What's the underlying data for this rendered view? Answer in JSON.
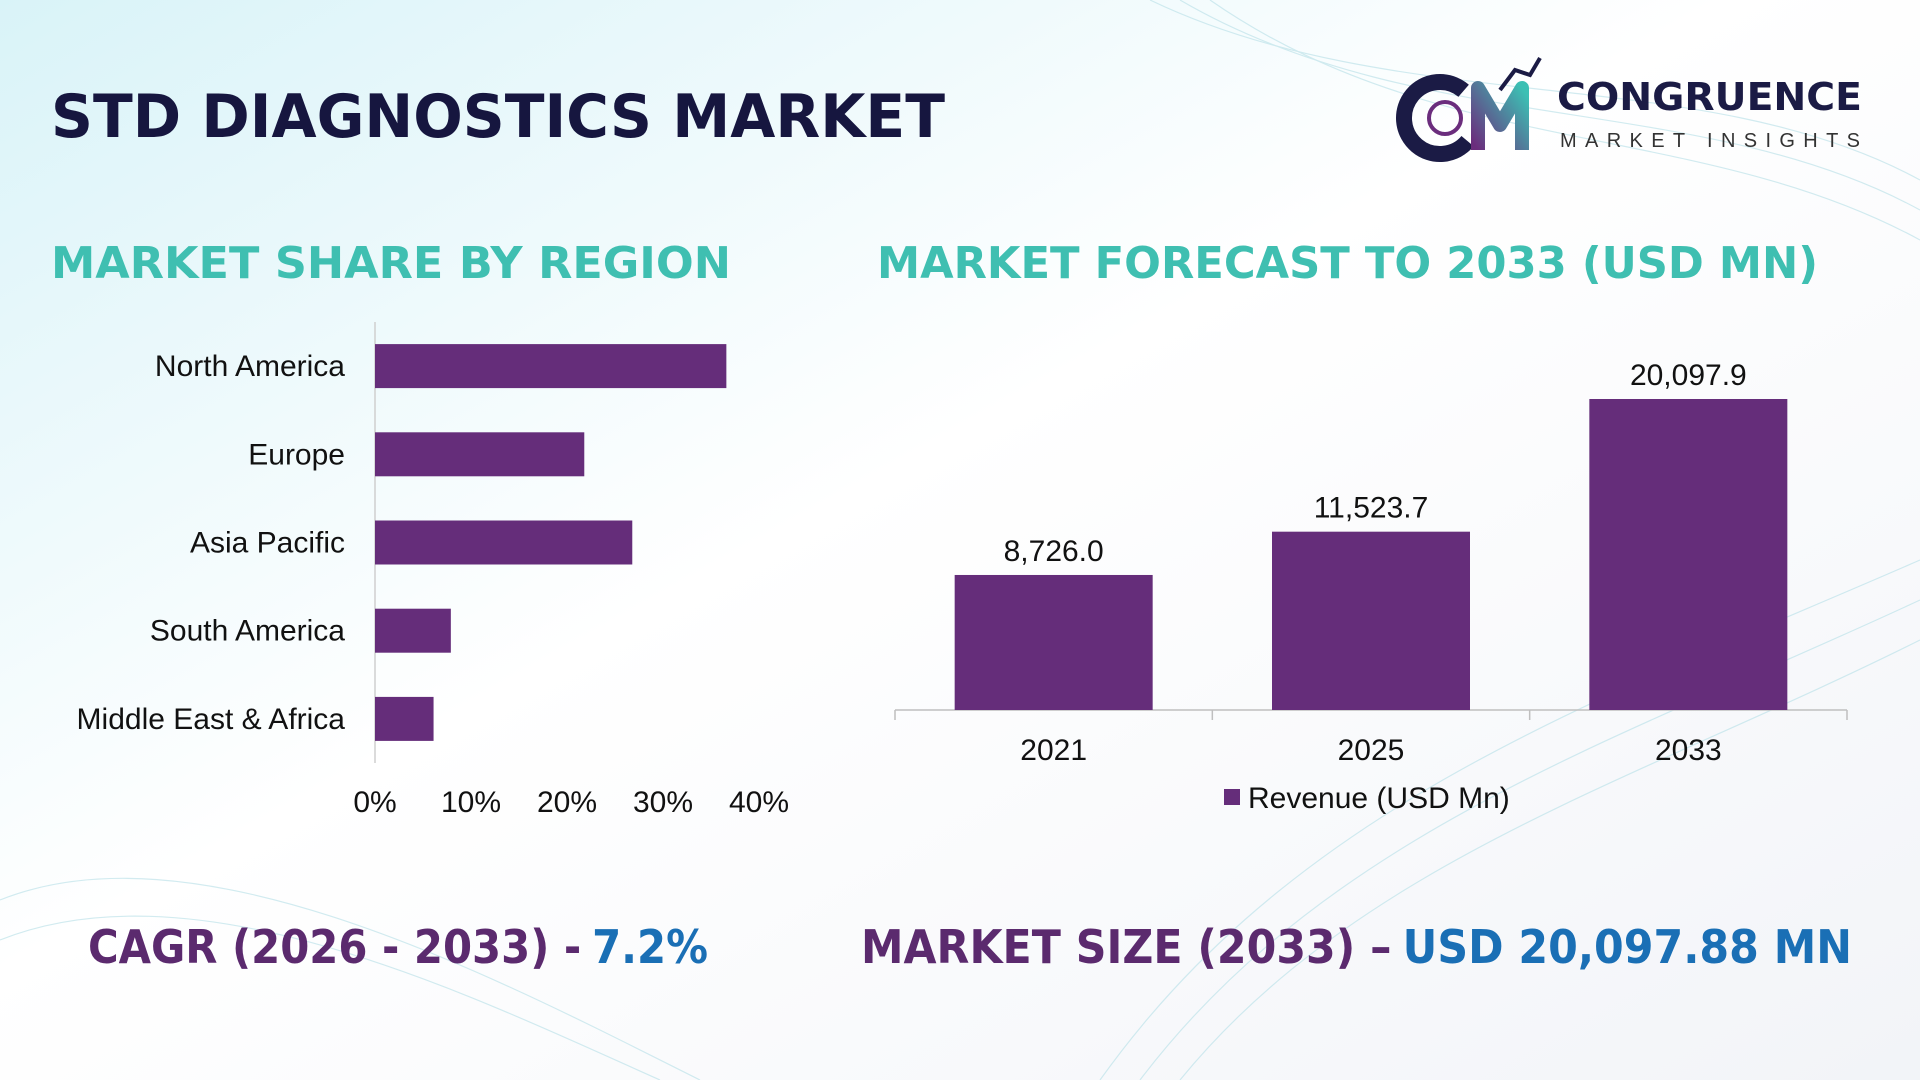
{
  "header": {
    "title": "STD DIAGNOSTICS MARKET",
    "logo_name": "CONGRUENCE",
    "logo_tagline": "MARKET INSIGHTS"
  },
  "chart_data": [
    {
      "type": "barh",
      "title": "MARKET SHARE BY REGION",
      "categories": [
        "North America",
        "Europe",
        "Asia Pacific",
        "South America",
        "Middle East & Africa"
      ],
      "values": [
        36.6,
        21.8,
        26.8,
        7.9,
        6.1
      ],
      "color": "#652d7a",
      "xlim": [
        0,
        40
      ],
      "xticks": [
        {
          "value": 0,
          "label": "0%"
        },
        {
          "value": 10,
          "label": "10%"
        },
        {
          "value": 20,
          "label": "20%"
        },
        {
          "value": 30,
          "label": "30%"
        },
        {
          "value": 40,
          "label": "40%"
        }
      ]
    },
    {
      "type": "bar",
      "title": "MARKET FORECAST TO 2033 (USD MN)",
      "categories": [
        "2021",
        "2025",
        "2033"
      ],
      "series": [
        {
          "name": "Revenue (USD Mn)",
          "color": "#652d7a",
          "values": [
            8726.0,
            11523.7,
            20097.9
          ],
          "value_labels": [
            "8,726.0",
            "11,523.7",
            "20,097.9"
          ]
        }
      ]
    }
  ],
  "footer": {
    "cagr_label": "CAGR (2026 - 2033) -",
    "cagr_value": "7.2%",
    "size_label": "MARKET SIZE (2033) –",
    "size_value": "USD 20,097.88 MN"
  }
}
